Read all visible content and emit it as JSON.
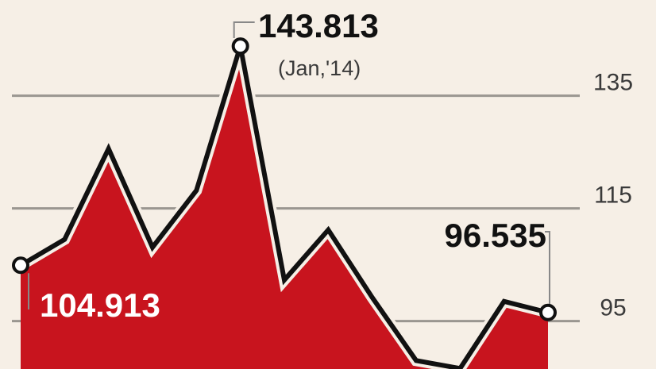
{
  "chart_data": {
    "type": "area",
    "categories": [
      null,
      null,
      null,
      null,
      null,
      null,
      null,
      null,
      null,
      null,
      null,
      null,
      null
    ],
    "values": [
      104.913,
      109.5,
      125.6,
      108.1,
      118.2,
      143.813,
      102.3,
      111.2,
      99.2,
      88.0,
      86.6,
      98.5,
      96.535
    ],
    "color": "#c8141e",
    "annotation": "(Jan,'14)",
    "ylim": [
      86.5,
      152
    ],
    "yticks": [
      95,
      115,
      135
    ],
    "grid": true
  }
}
